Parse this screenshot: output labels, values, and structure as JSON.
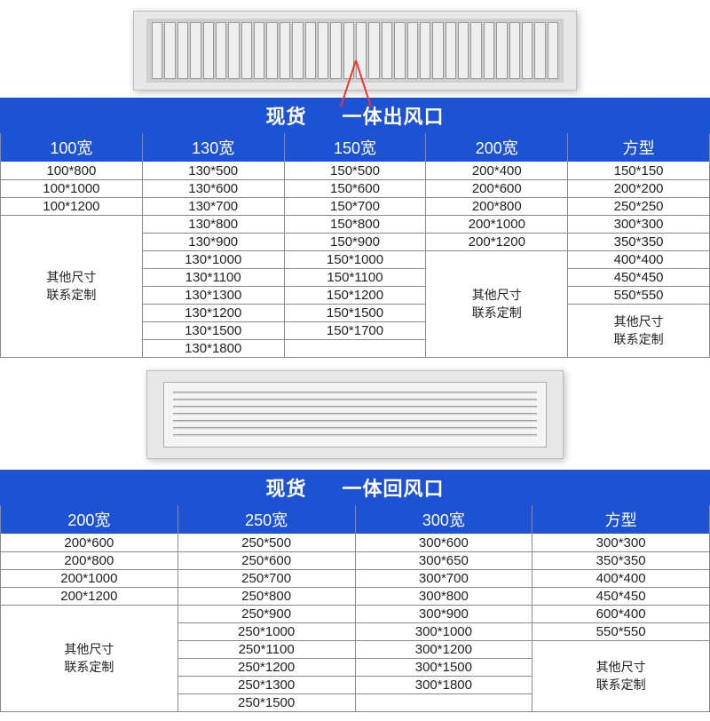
{
  "section1": {
    "title_a": "现货",
    "title_b": "一体出风口",
    "columns": [
      {
        "header": "100宽",
        "rows": [
          "100*800",
          "100*1000",
          "100*1200"
        ],
        "custom": "其他尺寸\n联系定制"
      },
      {
        "header": "130宽",
        "rows": [
          "130*500",
          "130*600",
          "130*700",
          "130*800",
          "130*900",
          "130*1000",
          "130*1100",
          "130*1300",
          "130*1200",
          "130*1500",
          "130*1800"
        ],
        "custom": null
      },
      {
        "header": "150宽",
        "rows": [
          "150*500",
          "150*600",
          "150*700",
          "150*800",
          "150*900",
          "150*1000",
          "150*1100",
          "150*1200",
          "150*1500",
          "150*1700"
        ],
        "custom": null
      },
      {
        "header": "200宽",
        "rows": [
          "200*400",
          "200*600",
          "200*800",
          "200*1000",
          "200*1200"
        ],
        "custom": "其他尺寸\n联系定制"
      },
      {
        "header": "方型",
        "rows": [
          "150*150",
          "200*200",
          "250*250",
          "300*300",
          "350*350",
          "400*400",
          "450*450",
          "550*550"
        ],
        "custom": "其他尺寸\n联系定制"
      }
    ],
    "max_rows": 11,
    "colors": {
      "header_bg": "#1d52d4",
      "border": "#888888",
      "text": "#222222"
    }
  },
  "section2": {
    "title_a": "现货",
    "title_b": "一体回风口",
    "columns": [
      {
        "header": "200宽",
        "rows": [
          "200*600",
          "200*800",
          "200*1000",
          "200*1200"
        ],
        "custom": "其他尺寸\n联系定制"
      },
      {
        "header": "250宽",
        "rows": [
          "250*500",
          "250*600",
          "250*700",
          "250*800",
          "250*900",
          "250*1000",
          "250*1100",
          "250*1200",
          "250*1300",
          "250*1500"
        ],
        "custom": null
      },
      {
        "header": "300宽",
        "rows": [
          "300*600",
          "300*650",
          "300*700",
          "300*800",
          "300*900",
          "300*1000",
          "300*1200",
          "300*1500",
          "300*1800"
        ],
        "custom": null
      },
      {
        "header": "方型",
        "rows": [
          "300*300",
          "350*350",
          "400*400",
          "450*450",
          "600*400",
          "550*550"
        ],
        "custom": "其他尺寸\n联系定制"
      }
    ],
    "max_rows": 10,
    "colors": {
      "header_bg": "#1d52d4",
      "border": "#888888",
      "text": "#222222"
    }
  }
}
